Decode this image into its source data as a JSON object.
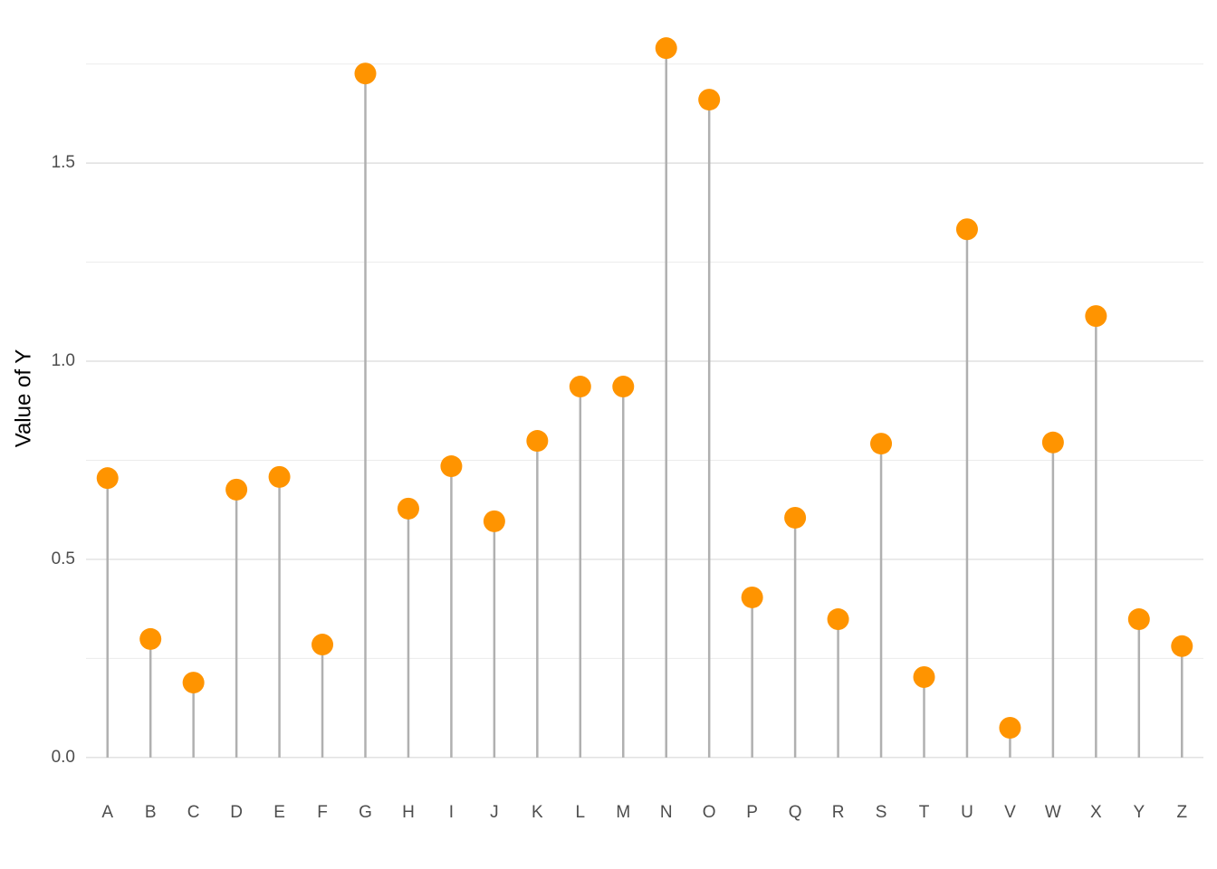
{
  "chart_data": {
    "type": "lollipop",
    "y_label": "Value of Y",
    "categories": [
      "A",
      "B",
      "C",
      "D",
      "E",
      "F",
      "G",
      "H",
      "I",
      "J",
      "K",
      "L",
      "M",
      "N",
      "O",
      "P",
      "Q",
      "R",
      "S",
      "T",
      "U",
      "V",
      "W",
      "X",
      "Y",
      "Z"
    ],
    "values": [
      0.705,
      0.299,
      0.189,
      0.676,
      0.708,
      0.285,
      1.726,
      0.628,
      0.735,
      0.596,
      0.799,
      0.936,
      0.936,
      1.79,
      1.66,
      0.404,
      0.605,
      0.349,
      0.792,
      0.203,
      1.333,
      0.075,
      0.795,
      1.114,
      0.349,
      0.281
    ],
    "color": "#ff9400",
    "stem_color": "#b0b0b0",
    "ylim": [
      -0.0895,
      1.8795
    ],
    "yticks": [
      {
        "value": 0,
        "label": "0.0"
      },
      0.5,
      {
        "value": 1,
        "label": "1.0"
      },
      1.5
    ],
    "minor_yticks": [
      0.25,
      0.75,
      1.25,
      1.75
    ],
    "grid": true
  }
}
